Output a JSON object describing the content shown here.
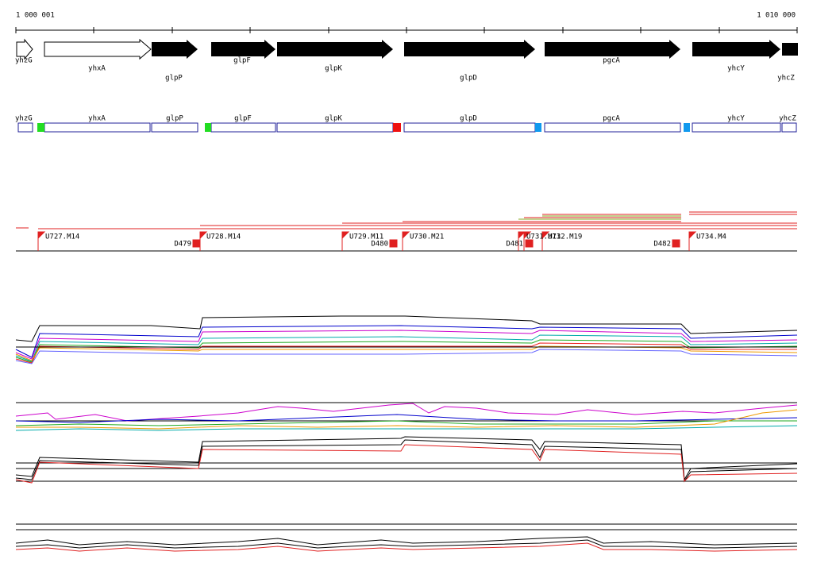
{
  "ruler": {
    "start": "1 000 001",
    "end": "1 010 000"
  },
  "genes": [
    "yhzG",
    "yhxA",
    "glpP",
    "glpF",
    "glpK",
    "glpD",
    "pgcA",
    "yhcY",
    "yhcZ"
  ],
  "features": [
    "yhzG",
    "yhxA",
    "glpP",
    "glpF",
    "glpK",
    "glpD",
    "pgcA",
    "yhcY",
    "yhcZ"
  ],
  "flags": [
    "U727.M14",
    "D479",
    "U728.M14",
    "U729.M11",
    "D480",
    "U730.M21",
    "D481",
    "U731.M11",
    "U732.M19",
    "D482",
    "U734.M4"
  ]
}
